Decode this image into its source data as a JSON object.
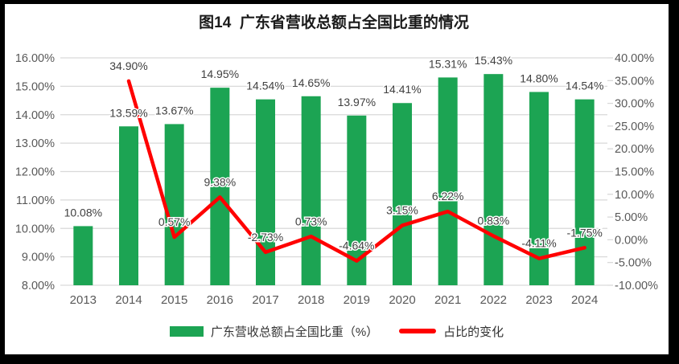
{
  "chart_data": {
    "type": "bar+line",
    "title": "图14  广东省营收总额占全国比重的情况",
    "categories": [
      "2013",
      "2014",
      "2015",
      "2016",
      "2017",
      "2018",
      "2019",
      "2020",
      "2021",
      "2022",
      "2023",
      "2024"
    ],
    "series": [
      {
        "name": "广东营收总额占全国比重（%）",
        "type": "bar",
        "axis": "left",
        "color": "#1CA453",
        "values": [
          10.08,
          13.59,
          13.67,
          14.95,
          14.54,
          14.65,
          13.97,
          14.41,
          15.31,
          15.43,
          14.8,
          14.54
        ],
        "labels": [
          "10.08%",
          "13.59%",
          "13.67%",
          "14.95%",
          "14.54%",
          "14.65%",
          "13.97%",
          "14.41%",
          "15.31%",
          "15.43%",
          "14.80%",
          "14.54%"
        ]
      },
      {
        "name": "占比的变化",
        "type": "line",
        "axis": "right",
        "color": "#FF0000",
        "values": [
          null,
          34.9,
          0.57,
          9.38,
          -2.73,
          0.73,
          -4.64,
          3.15,
          6.22,
          0.83,
          -4.11,
          -1.75
        ],
        "labels": [
          null,
          "34.90%",
          "0.57%",
          "9.38%",
          "-2.73%",
          "0.73%",
          "-4.64%",
          "3.15%",
          "6.22%",
          "0.83%",
          "-4.11%",
          "-1.75%"
        ]
      }
    ],
    "left_axis": {
      "min": 8,
      "max": 16,
      "step": 1,
      "ticks": [
        "8.00%",
        "9.00%",
        "10.00%",
        "11.00%",
        "12.00%",
        "13.00%",
        "14.00%",
        "15.00%",
        "16.00%"
      ]
    },
    "right_axis": {
      "min": -10,
      "max": 40,
      "step": 5,
      "ticks": [
        "-10.00%",
        "-5.00%",
        "0.00%",
        "5.00%",
        "10.00%",
        "15.00%",
        "20.00%",
        "25.00%",
        "30.00%",
        "35.00%",
        "40.00%"
      ]
    },
    "grid": true,
    "legend_position": "bottom",
    "colors": {
      "bar": "#1CA453",
      "line": "#FF0000",
      "grid": "#D9D9D9",
      "axis_text": "#595959",
      "label_text": "#404040",
      "title_text": "#1a1a1a",
      "frame": "#000000",
      "background": "#FFFFFF"
    }
  }
}
